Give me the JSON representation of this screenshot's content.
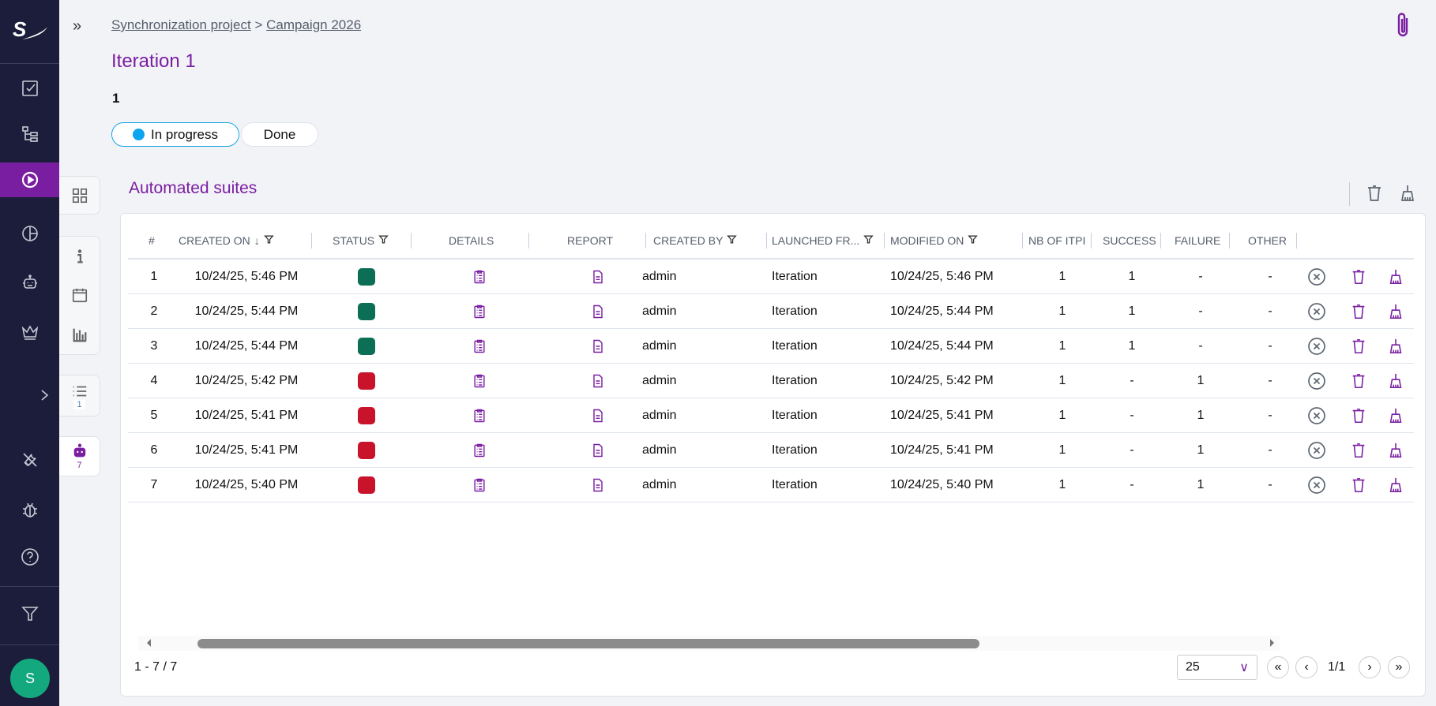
{
  "nav": {
    "items": [
      "tasks-icon",
      "tree-icon",
      "play-icon",
      "pie-chart-icon",
      "robot-icon",
      "crown-icon",
      "chevron-right-icon",
      "tools-icon",
      "bug-icon",
      "help-icon",
      "filter-icon"
    ],
    "active": "play-icon",
    "avatar": "S"
  },
  "breadcrumb": {
    "project": "Synchronization project",
    "separator": ">",
    "campaign": "Campaign 2026"
  },
  "title": "Iteration 1",
  "reference": "1",
  "status_toggle": {
    "options": [
      "In progress",
      "Done"
    ],
    "selected": "In progress"
  },
  "side_panel": {
    "list_count": "1",
    "robot_count": "7"
  },
  "section": {
    "title": "Automated suites"
  },
  "table": {
    "columns": [
      "#",
      "CREATED ON",
      "STATUS",
      "DETAILS",
      "REPORT",
      "CREATED BY",
      "LAUNCHED FR...",
      "MODIFIED ON",
      "NB OF ITPI",
      "SUCCESS",
      "FAILURE",
      "OTHER"
    ],
    "rows": [
      {
        "n": "1",
        "created": "10/24/25, 5:46 PM",
        "status": "success",
        "by": "admin",
        "from": "Iteration",
        "modified": "10/24/25, 5:46 PM",
        "nb": "1",
        "success": "1",
        "failure": "-",
        "other": "-"
      },
      {
        "n": "2",
        "created": "10/24/25, 5:44 PM",
        "status": "success",
        "by": "admin",
        "from": "Iteration",
        "modified": "10/24/25, 5:44 PM",
        "nb": "1",
        "success": "1",
        "failure": "-",
        "other": "-"
      },
      {
        "n": "3",
        "created": "10/24/25, 5:44 PM",
        "status": "success",
        "by": "admin",
        "from": "Iteration",
        "modified": "10/24/25, 5:44 PM",
        "nb": "1",
        "success": "1",
        "failure": "-",
        "other": "-"
      },
      {
        "n": "4",
        "created": "10/24/25, 5:42 PM",
        "status": "failure",
        "by": "admin",
        "from": "Iteration",
        "modified": "10/24/25, 5:42 PM",
        "nb": "1",
        "success": "-",
        "failure": "1",
        "other": "-"
      },
      {
        "n": "5",
        "created": "10/24/25, 5:41 PM",
        "status": "failure",
        "by": "admin",
        "from": "Iteration",
        "modified": "10/24/25, 5:41 PM",
        "nb": "1",
        "success": "-",
        "failure": "1",
        "other": "-"
      },
      {
        "n": "6",
        "created": "10/24/25, 5:41 PM",
        "status": "failure",
        "by": "admin",
        "from": "Iteration",
        "modified": "10/24/25, 5:41 PM",
        "nb": "1",
        "success": "-",
        "failure": "1",
        "other": "-"
      },
      {
        "n": "7",
        "created": "10/24/25, 5:40 PM",
        "status": "failure",
        "by": "admin",
        "from": "Iteration",
        "modified": "10/24/25, 5:40 PM",
        "nb": "1",
        "success": "-",
        "failure": "1",
        "other": "-"
      }
    ]
  },
  "status_colors": {
    "success": "#0b6e55",
    "failure": "#c8132b"
  },
  "pagination": {
    "range": "1 - 7 / 7",
    "page_size": "25",
    "page": "1/1"
  },
  "colors": {
    "accent": "#7a1ea1",
    "nav": "#1b1d3a",
    "avatar": "#14a87e"
  }
}
